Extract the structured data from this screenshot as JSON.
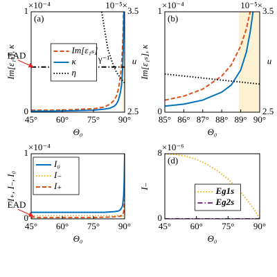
{
  "chart_data": [
    {
      "type": "line",
      "panel_label": "(a)",
      "xlabel": "Θ₀",
      "ylabel": "Im[ε₁ₛ], κ",
      "y2label": "u",
      "exponent": "×10⁻⁴",
      "y2exponent": "10⁻⁵×",
      "ycolor": "#d95319",
      "xlim": [
        45,
        90
      ],
      "xticks": [
        {
          "value": 45,
          "label": "45°"
        },
        {
          "value": 60,
          "label": "60°"
        },
        {
          "value": 75,
          "label": "75°"
        },
        {
          "value": 90,
          "label": "90°"
        }
      ],
      "ylim": [
        0,
        1
      ],
      "yticks": [
        0,
        1
      ],
      "y2lim": [
        2.5,
        3.5
      ],
      "y2ticks": [
        2.5,
        3.5
      ],
      "shade": [
        88.9,
        90
      ],
      "legend": "upper center",
      "series": [
        {
          "name": "Im[ε₁ₛ]",
          "color": "#d95319",
          "style": "dashed",
          "x": [
            45,
            55,
            65,
            75,
            80,
            83,
            85,
            86,
            87,
            88,
            88.5,
            89,
            89.3,
            89.5
          ],
          "values": [
            0.02,
            0.02,
            0.025,
            0.035,
            0.05,
            0.08,
            0.12,
            0.16,
            0.23,
            0.36,
            0.47,
            0.66,
            0.83,
            1.0
          ]
        },
        {
          "name": "κ",
          "color": "#0072bd",
          "style": "solid",
          "x": [
            45,
            55,
            65,
            75,
            80,
            83,
            85,
            86,
            87,
            88,
            88.5,
            89,
            89.3,
            89.5,
            89.65
          ],
          "values": [
            0.01,
            0.01,
            0.015,
            0.02,
            0.03,
            0.04,
            0.06,
            0.08,
            0.12,
            0.2,
            0.27,
            0.42,
            0.6,
            0.8,
            1.0
          ]
        },
        {
          "name": "η",
          "color": "#000000",
          "style": "dotted",
          "axis": "y2",
          "x": [
            79,
            80.5,
            82,
            84,
            86,
            88,
            90
          ],
          "values": [
            3.5,
            3.3,
            3.12,
            3.0,
            2.9,
            2.84,
            2.79
          ]
        },
        {
          "color": "#000000",
          "style": "dashdot",
          "axis": "y2",
          "x": [
            45,
            90
          ],
          "values": [
            2.95,
            2.95
          ]
        }
      ],
      "annotations": [
        {
          "text": "EAD",
          "color": "#e0201b",
          "arrow": true,
          "at": [
            46,
            0.45
          ]
        },
        {
          "text": "γ⁻¹",
          "color": "#000000",
          "arrow": false,
          "at": [
            80,
            0.52
          ]
        }
      ]
    },
    {
      "type": "line",
      "panel_label": "(b)",
      "xlabel": "Θ₀",
      "ylabel": "Im[ε₁ₛ], κ",
      "y2label": "u",
      "exponent": "×10⁻⁴",
      "y2exponent": "10⁻⁵×",
      "ycolor": "#d95319",
      "xlim": [
        85,
        90
      ],
      "xticks": [
        {
          "value": 85,
          "label": "85°"
        },
        {
          "value": 86,
          "label": "86°"
        },
        {
          "value": 87,
          "label": "87°"
        },
        {
          "value": 88,
          "label": "88°"
        },
        {
          "value": 89,
          "label": "89°"
        },
        {
          "value": 90,
          "label": "90°"
        }
      ],
      "ylim": [
        0,
        1
      ],
      "yticks": [
        0,
        1
      ],
      "y2lim": [
        2.5,
        3.5
      ],
      "y2ticks": [
        2.5,
        3.5
      ],
      "shade": [
        88.9,
        90
      ],
      "series": [
        {
          "color": "#d95319",
          "style": "dashed",
          "x": [
            85,
            86,
            87,
            88,
            88.5,
            89,
            89.3,
            89.5
          ],
          "values": [
            0.12,
            0.16,
            0.23,
            0.36,
            0.47,
            0.66,
            0.83,
            1.0
          ]
        },
        {
          "color": "#0072bd",
          "style": "solid",
          "x": [
            85,
            86,
            87,
            88,
            88.5,
            89,
            89.3,
            89.5,
            89.65
          ],
          "values": [
            0.06,
            0.08,
            0.12,
            0.2,
            0.27,
            0.42,
            0.6,
            0.8,
            1.0
          ]
        },
        {
          "color": "#000000",
          "style": "dotted",
          "axis": "y2",
          "x": [
            85,
            86,
            87,
            88,
            89,
            90
          ],
          "values": [
            2.88,
            2.86,
            2.84,
            2.82,
            2.8,
            2.78
          ]
        }
      ]
    },
    {
      "type": "line",
      "panel_label": "(c)",
      "xlabel": "Θ₀",
      "ylabel": "I₊, I₋, I₀",
      "exponent": "×10⁻⁴",
      "xlim": [
        45,
        90
      ],
      "xticks": [
        {
          "value": 45,
          "label": "45°"
        },
        {
          "value": 60,
          "label": "60°"
        },
        {
          "value": 75,
          "label": "75°"
        },
        {
          "value": 90,
          "label": "90°"
        }
      ],
      "ylim": [
        0,
        1
      ],
      "yticks": [
        0,
        1
      ],
      "legend": "upper left",
      "series": [
        {
          "name": "I₀",
          "color": "#0072bd",
          "style": "solid",
          "x": [
            45,
            55,
            65,
            75,
            80,
            85,
            87,
            88,
            89,
            89.5,
            89.8,
            90
          ],
          "values": [
            0.1,
            0.1,
            0.1,
            0.1,
            0.1,
            0.11,
            0.12,
            0.14,
            0.2,
            0.35,
            0.6,
            1.0
          ]
        },
        {
          "name": "I₋",
          "color": "#edb120",
          "style": "dotted",
          "x": [
            45,
            60,
            75,
            85,
            88,
            89.5,
            90
          ],
          "values": [
            0.05,
            0.05,
            0.05,
            0.05,
            0.05,
            0.04,
            0
          ]
        },
        {
          "name": "I₊",
          "color": "#d95319",
          "style": "dashed",
          "x": [
            45,
            46,
            48,
            55,
            65,
            75,
            85,
            88,
            89,
            89.5,
            90
          ],
          "values": [
            0.01,
            0.03,
            0.02,
            0.02,
            0.02,
            0.02,
            0.03,
            0.04,
            0.06,
            0.1,
            0.3
          ]
        }
      ],
      "annotations": [
        {
          "text": "EAD",
          "color": "#e0201b",
          "arrow": true,
          "at": [
            46,
            0.04
          ]
        }
      ]
    },
    {
      "type": "line",
      "panel_label": "(d)",
      "xlabel": "Θ₀",
      "ylabel": "I₋",
      "exponent": "×10⁻⁶",
      "xlim": [
        45,
        90
      ],
      "xticks": [
        {
          "value": 45,
          "label": "45°"
        },
        {
          "value": 60,
          "label": "60°"
        },
        {
          "value": 75,
          "label": "75°"
        },
        {
          "value": 90,
          "label": "90°"
        }
      ],
      "ylim": [
        0,
        8
      ],
      "yticks": [
        0,
        8
      ],
      "legend": "lower center",
      "series": [
        {
          "name": "Eg1s",
          "color": "#edb120",
          "style": "dotted",
          "x": [
            45,
            50,
            55,
            60,
            65,
            70,
            75,
            80,
            85,
            88,
            90
          ],
          "values": [
            8,
            7.9,
            7.7,
            7.3,
            6.7,
            5.9,
            4.9,
            3.6,
            2.0,
            0.9,
            0
          ]
        },
        {
          "name": "Eg2s",
          "color": "#7e2f8e",
          "style": "dashdot",
          "x": [
            45,
            90
          ],
          "values": [
            0,
            0
          ]
        }
      ]
    }
  ]
}
